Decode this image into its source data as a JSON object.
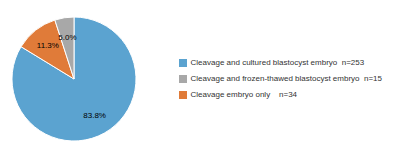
{
  "chart_data": {
    "type": "pie",
    "categories": [
      "Cleavage and cultured blastocyst embryo  n=253",
      "Cleavage embryo only    n=34",
      "Cleavage and frozen-thawed blastocyst embryo  n=15"
    ],
    "values": [
      83.8,
      11.3,
      5.0
    ],
    "value_labels": [
      "83.8%",
      "11.3%",
      "5.0%"
    ],
    "colors": [
      "#5BA3D0",
      "#E07B39",
      "#A8A8A8"
    ],
    "data_labels": true,
    "legend": "right"
  }
}
